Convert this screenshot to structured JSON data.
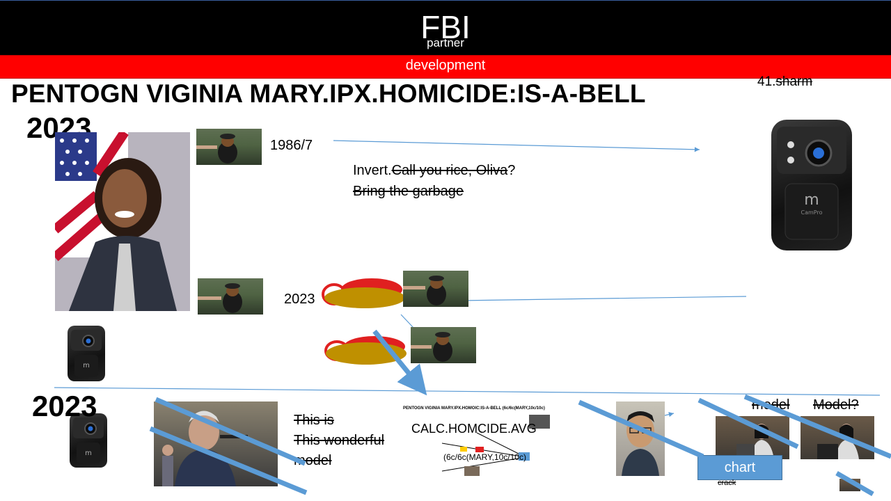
{
  "header": {
    "title": "FBI",
    "subtitle": "partner"
  },
  "banner": {
    "text": "development"
  },
  "title": "PENTOGN VIGINIA MARY.IPX.HOMICIDE:IS-A-BELL",
  "years": {
    "top": "2023",
    "middle": "2023",
    "bottom": "2023"
  },
  "date_label": "1986/7",
  "corner_label": {
    "prefix": "41.",
    "struck": "sharm"
  },
  "dialog": {
    "line1_plain": "Invert.",
    "line1_struck": "Call you rice, Oliva",
    "line1_end": "?",
    "line2_struck": "Bring the garbage"
  },
  "caption_lines": [
    "This is",
    "This wonderful",
    "model"
  ],
  "mini_slide": {
    "title": "PENTOGN VIGINIA MARY.IPX.HOMOIC:IS-A-BELL (6c/6c(MARY,10c/10c)",
    "overlay_text": "CALC.HOMCIDE.AVG",
    "formula": "(6c/6c(MARY,10c/10c)"
  },
  "model_labels": [
    "model",
    "Model?"
  ],
  "chart_button": {
    "label": "chart"
  },
  "small_note": "crack",
  "icons": [
    "body-camera-icon",
    "dog-photo",
    "portrait-photo"
  ],
  "colors": {
    "header": "#000000",
    "banner": "#ff0000",
    "line": "#5b9bd5",
    "blob": "#bf9000",
    "hat": "#e02020"
  }
}
